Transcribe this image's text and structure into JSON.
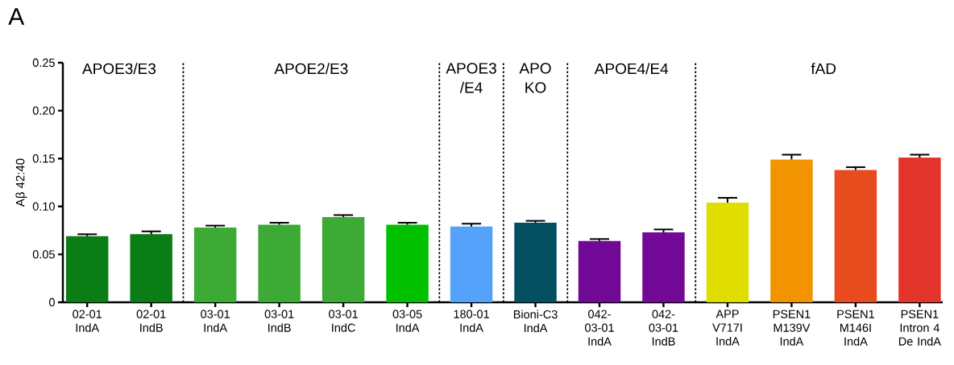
{
  "chart_data": {
    "type": "bar",
    "title": "A",
    "ylabel": "Aβ 42:40",
    "categories": [
      "02-01 IndA",
      "02-01 IndB",
      "03-01 IndA",
      "03-01 IndB",
      "03-01 IndC",
      "03-05 IndA",
      "180-01 IndA",
      "Bioni-C3 IndA",
      "042-03-01 IndA",
      "042-03-01 IndB",
      "APP V717I IndA",
      "PSEN1 M139V IndA",
      "PSEN1 M146I IndA",
      "PSEN1 Intron 4 De IndA"
    ],
    "values": [
      0.069,
      0.071,
      0.078,
      0.081,
      0.089,
      0.081,
      0.079,
      0.083,
      0.064,
      0.073,
      0.104,
      0.149,
      0.138,
      0.151
    ],
    "errors": [
      0.002,
      0.003,
      0.002,
      0.002,
      0.002,
      0.002,
      0.003,
      0.002,
      0.002,
      0.003,
      0.005,
      0.005,
      0.003,
      0.003
    ],
    "colors": [
      "#0b7d16",
      "#0b7d16",
      "#3daa35",
      "#3daa35",
      "#3daa35",
      "#00c000",
      "#55a2fa",
      "#044e62",
      "#720896",
      "#720896",
      "#e0dd00",
      "#f29300",
      "#e84b1e",
      "#e2342a"
    ],
    "ylim": [
      0,
      0.25
    ],
    "yticks": [
      0,
      0.05,
      {
        "value": 0.1,
        "label": "0.10"
      },
      0.15,
      {
        "value": 0.2,
        "label": "0.20"
      },
      0.25
    ],
    "annotations": [
      "APOE3/E3",
      "APOE2/E3",
      "APOE3 /E4",
      "APO KO",
      "APOE4/E4",
      "fAD"
    ]
  }
}
